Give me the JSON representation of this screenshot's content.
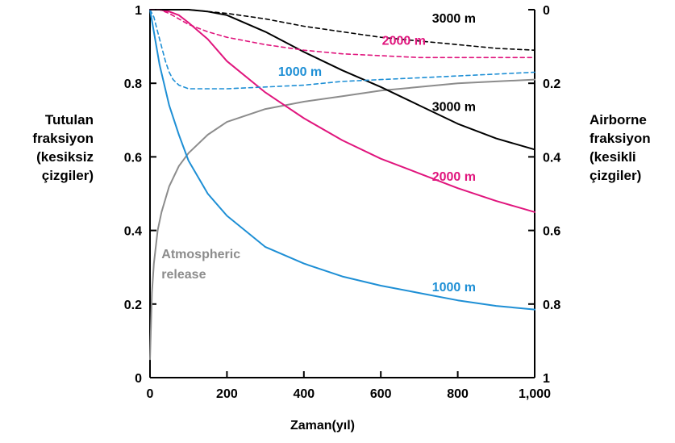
{
  "chart_data": {
    "type": "line",
    "xlabel": "Zaman(yıl)",
    "ylabel_left": [
      "Tutulan",
      "fraksiyon",
      "(kesiksiz",
      "çizgiler)"
    ],
    "ylabel_right": [
      "Airborne",
      "fraksiyon",
      "(kesikli",
      "çizgiler)"
    ],
    "xlim": [
      0,
      1000
    ],
    "ylim_left": [
      0,
      1
    ],
    "ylim_right": [
      1,
      0
    ],
    "x_ticks": [
      0,
      200,
      400,
      600,
      800,
      1000
    ],
    "x_tick_labels": [
      "0",
      "200",
      "400",
      "600",
      "800",
      "1,000"
    ],
    "y_left_ticks": [
      0,
      0.2,
      0.4,
      0.6,
      0.8,
      1
    ],
    "y_left_tick_labels": [
      "0",
      "0.2",
      "0.4",
      "0.6",
      "0.8",
      "1"
    ],
    "y_right_ticks": [
      0,
      0.2,
      0.4,
      0.6,
      0.8,
      1
    ],
    "y_right_tick_labels": [
      "0",
      "0.2",
      "0.4",
      "0.6",
      "0.8",
      "1"
    ],
    "grid": false,
    "series": [
      {
        "name": "Atmospheric release",
        "style": "solid",
        "axis": "left",
        "color": "#8c8c8c",
        "x": [
          0,
          5,
          10,
          20,
          30,
          50,
          75,
          100,
          150,
          200,
          300,
          400,
          500,
          600,
          700,
          800,
          900,
          1000
        ],
        "values": [
          0.05,
          0.23,
          0.31,
          0.4,
          0.45,
          0.52,
          0.575,
          0.61,
          0.66,
          0.695,
          0.73,
          0.75,
          0.765,
          0.78,
          0.79,
          0.8,
          0.805,
          0.81
        ]
      },
      {
        "name": "1000 m",
        "style": "solid",
        "axis": "left",
        "color": "#1e8fd5",
        "x": [
          0,
          10,
          25,
          50,
          75,
          100,
          150,
          200,
          300,
          400,
          500,
          600,
          700,
          800,
          900,
          1000
        ],
        "values": [
          1.0,
          0.94,
          0.85,
          0.74,
          0.66,
          0.59,
          0.5,
          0.44,
          0.355,
          0.31,
          0.275,
          0.25,
          0.23,
          0.21,
          0.195,
          0.185
        ]
      },
      {
        "name": "2000 m",
        "style": "solid",
        "axis": "left",
        "color": "#e0157d",
        "x": [
          0,
          25,
          50,
          75,
          100,
          150,
          200,
          300,
          400,
          500,
          600,
          700,
          800,
          900,
          1000
        ],
        "values": [
          1.0,
          1.0,
          0.995,
          0.985,
          0.965,
          0.92,
          0.86,
          0.775,
          0.705,
          0.645,
          0.595,
          0.555,
          0.515,
          0.48,
          0.45
        ]
      },
      {
        "name": "3000 m",
        "style": "solid",
        "axis": "left",
        "color": "#000000",
        "x": [
          0,
          50,
          100,
          150,
          200,
          300,
          400,
          500,
          600,
          700,
          800,
          900,
          1000
        ],
        "values": [
          1.0,
          1.0,
          1.0,
          0.995,
          0.985,
          0.94,
          0.885,
          0.835,
          0.79,
          0.74,
          0.69,
          0.65,
          0.62
        ]
      },
      {
        "name": "1000 m",
        "style": "dashed",
        "axis": "right",
        "color": "#1e8fd5",
        "x": [
          0,
          10,
          20,
          30,
          40,
          50,
          60,
          75,
          100,
          150,
          200,
          300,
          400,
          500,
          600,
          700,
          800,
          900,
          1000
        ],
        "values": [
          0.0,
          0.02,
          0.06,
          0.1,
          0.14,
          0.17,
          0.19,
          0.205,
          0.215,
          0.215,
          0.215,
          0.21,
          0.205,
          0.195,
          0.19,
          0.185,
          0.18,
          0.175,
          0.17
        ]
      },
      {
        "name": "2000 m",
        "style": "dashed",
        "axis": "right",
        "color": "#e0157d",
        "x": [
          0,
          25,
          50,
          75,
          100,
          150,
          200,
          300,
          400,
          500,
          600,
          700,
          800,
          900,
          1000
        ],
        "values": [
          0.0,
          0.0,
          0.01,
          0.025,
          0.04,
          0.06,
          0.075,
          0.095,
          0.11,
          0.12,
          0.125,
          0.13,
          0.13,
          0.13,
          0.13
        ]
      },
      {
        "name": "3000 m",
        "style": "dashed",
        "axis": "right",
        "color": "#000000",
        "x": [
          0,
          50,
          100,
          150,
          200,
          300,
          400,
          500,
          600,
          700,
          800,
          900,
          1000
        ],
        "values": [
          0.0,
          0.0,
          0.0,
          0.005,
          0.01,
          0.025,
          0.045,
          0.06,
          0.075,
          0.085,
          0.095,
          0.105,
          0.11
        ]
      }
    ],
    "annotations": [
      {
        "text": "3000 m",
        "x": 790,
        "y": 0.965,
        "color": "#000000"
      },
      {
        "text": "2000 m",
        "x": 660,
        "y": 0.905,
        "color": "#e0157d"
      },
      {
        "text": "1000 m",
        "x": 390,
        "y": 0.82,
        "color": "#1e8fd5"
      },
      {
        "text": "3000 m",
        "x": 790,
        "y": 0.725,
        "color": "#000000"
      },
      {
        "text": "2000 m",
        "x": 790,
        "y": 0.535,
        "color": "#e0157d"
      },
      {
        "text": "1000 m",
        "x": 790,
        "y": 0.235,
        "color": "#1e8fd5"
      },
      {
        "text": "Atmospheric",
        "x": 30,
        "y": 0.325,
        "color": "#8c8c8c"
      },
      {
        "text": "release",
        "x": 30,
        "y": 0.27,
        "color": "#8c8c8c"
      }
    ]
  }
}
